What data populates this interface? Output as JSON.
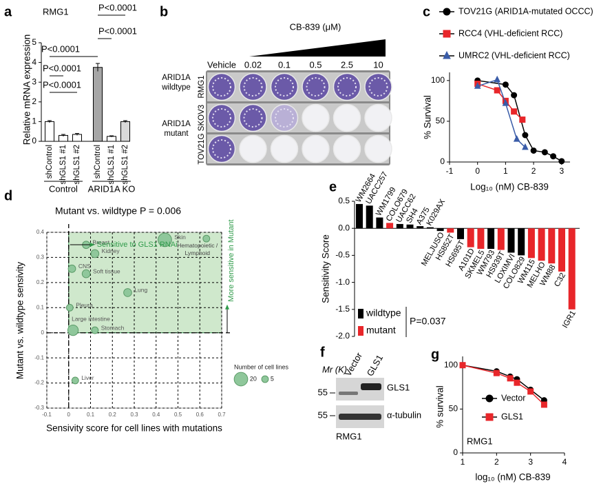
{
  "chart_data": [
    {
      "panel": "a",
      "type": "bar",
      "subtitle": "RMG1",
      "y_label": "Relative mRNA expression",
      "categories": [
        "shControl",
        "shGLS1 #1",
        "shGLS1 #2",
        "shControl",
        "shGLS1 #1",
        "shGLS1 #2"
      ],
      "values": [
        1,
        0.3,
        0.35,
        3.75,
        0.25,
        1
      ],
      "errors": [
        0.05,
        0.05,
        0.05,
        0.2,
        0.03,
        0.05
      ],
      "colors": [
        "#ffffff",
        "#ffffff",
        "#ffffff",
        "#a6a6a6",
        "#ffffff",
        "#d9d9d9"
      ],
      "groups": [
        "Control",
        "ARID1A KO"
      ],
      "annotations": [
        "P<0.0001",
        "P<0.0001",
        "P<0.0001",
        "P<0.0001",
        "P<0.0001"
      ],
      "ylim": [
        0,
        5
      ],
      "yticks": [
        0,
        1,
        2,
        3,
        4,
        5
      ]
    },
    {
      "panel": "c",
      "type": "line",
      "x_label": "Log₁₀ (nM) CB-839",
      "y_label": "% Survival",
      "xlim": [
        -1,
        3.3
      ],
      "xticks": [
        -1,
        0,
        1,
        2,
        3
      ],
      "ylim": [
        0,
        110
      ],
      "yticks": [
        0,
        50,
        100
      ],
      "series": [
        {
          "name": "TOV21G (ARID1A-mutated OCCC)",
          "color": "#000000",
          "marker": "circle",
          "x": [
            0,
            1,
            1.3,
            1.7,
            2,
            2.4,
            2.7,
            3
          ],
          "values": [
            100,
            95,
            82,
            33,
            14,
            12,
            7,
            1
          ]
        },
        {
          "name": "RCC4 (VHL-deficient RCC)",
          "color": "#e8262a",
          "marker": "square",
          "x": [
            0,
            0.7,
            1,
            1.3,
            1.6
          ],
          "values": [
            96,
            88,
            75,
            62,
            52
          ]
        },
        {
          "name": "UMRC2 (VHL-deficient RCC)",
          "color": "#3a5ca8",
          "marker": "triangle",
          "x": [
            0,
            0.7,
            1,
            1.4,
            1.7
          ],
          "values": [
            93,
            101,
            72,
            28,
            18
          ]
        }
      ]
    },
    {
      "panel": "d",
      "type": "scatter",
      "title": "Mutant vs. wildtype P = 0.006",
      "x_label": "Sensivity score for cell lines with mutations",
      "y_label": "Mutant vs. wildtype sensivity",
      "annotations": [
        "Sensitive to GLS1 RNAi",
        "More sensitive in Mutant"
      ],
      "color": "#8fc79b",
      "categories": [
        "Skin",
        "Hematopoietic / Lymphoid",
        "Breast",
        "Kidney",
        "CNS",
        "Soft tissue",
        "Lung",
        "Pleura",
        "Large intestine",
        "Stomach",
        "Liver"
      ],
      "x": [
        0.44,
        0.63,
        0.08,
        0.12,
        0.015,
        0.08,
        0.27,
        0.005,
        0.02,
        0.12,
        0.03
      ],
      "values": [
        0.37,
        0.375,
        0.35,
        0.315,
        0.255,
        0.235,
        0.16,
        0.1,
        0.01,
        0.01,
        -0.19
      ],
      "sizes": [
        20,
        5,
        6,
        7,
        6,
        7,
        7,
        5,
        12,
        5,
        5
      ],
      "size_legend": {
        "title": "Number of cell lines",
        "sizes": [
          20,
          5
        ]
      },
      "xlim": [
        -0.1,
        0.7
      ],
      "xticks": [
        -0.1,
        0,
        0.1,
        0.2,
        0.3,
        0.4,
        0.5,
        0.6,
        0.7
      ],
      "ylim": [
        -0.3,
        0.4
      ],
      "yticks": [
        -0.3,
        -0.2,
        -0.1,
        0,
        0.1,
        0.2,
        0.3,
        0.4
      ],
      "grid": true
    },
    {
      "panel": "e",
      "type": "bar",
      "y_label": "Sensitivity Score",
      "categories": [
        "WM2664",
        "UACC257",
        "WM1799",
        "COLO679",
        "UACC62",
        "SH4",
        "A375",
        "K029AX",
        "MELJUSO",
        "HS852T",
        "HS695T",
        "A101D",
        "SKMEL5",
        "WM793",
        "HS939T",
        "LOXIMVI",
        "COLO829",
        "WM115",
        "MELHO",
        "WM88",
        "C32",
        "IGR1"
      ],
      "values": [
        0.45,
        0.42,
        0.2,
        0.1,
        0.08,
        0.07,
        0.04,
        0.02,
        -0.05,
        -0.08,
        -0.2,
        -0.35,
        -0.38,
        -0.38,
        -0.4,
        -0.45,
        -0.5,
        -0.55,
        -0.6,
        -0.65,
        -0.8,
        -1.5
      ],
      "colors": [
        "#000000",
        "#000000",
        "#000000",
        "#e8262a",
        "#000000",
        "#000000",
        "#000000",
        "#000000",
        "#000000",
        "#e8262a",
        "#000000",
        "#e8262a",
        "#e8262a",
        "#000000",
        "#e8262a",
        "#000000",
        "#000000",
        "#e8262a",
        "#e8262a",
        "#e8262a",
        "#e8262a",
        "#e8262a"
      ],
      "legend": [
        {
          "name": "wildtype",
          "color": "#000000"
        },
        {
          "name": "mutant",
          "color": "#e8262a"
        }
      ],
      "annotation": "P=0.037",
      "ylim": [
        -2,
        0.5
      ],
      "yticks": [
        {
          "value": -2,
          "label": "-2.0"
        },
        -1.5,
        {
          "value": -1,
          "label": "-1.0"
        },
        -0.5,
        {
          "value": 0,
          "label": "0.0"
        },
        0.5
      ]
    },
    {
      "panel": "g",
      "type": "line",
      "annotation": "RMG1",
      "x_label": "log₁₀ (nM) CB-839",
      "y_label": "% survival",
      "xlim": [
        1,
        4
      ],
      "xticks": [
        1,
        2,
        3,
        4
      ],
      "ylim": [
        0,
        110
      ],
      "yticks": [
        0,
        50,
        100
      ],
      "series": [
        {
          "name": "Vector",
          "color": "#000000",
          "marker": "circle",
          "x": [
            1,
            2,
            2.4,
            2.6,
            3,
            3.4
          ],
          "values": [
            100,
            93,
            87,
            84,
            72,
            60
          ]
        },
        {
          "name": "GLS1",
          "color": "#e8262a",
          "marker": "square",
          "x": [
            1,
            2,
            2.4,
            2.6,
            3,
            3.4
          ],
          "values": [
            100,
            91,
            85,
            80,
            70,
            55
          ]
        }
      ]
    }
  ],
  "images": [
    {
      "panel": "b",
      "title": "CB-839 (μM)",
      "columns": [
        "Vehicle",
        0.02,
        0.1,
        0.5,
        2.5,
        10
      ],
      "groups": [
        "ARID1A wildtype",
        "ARID1A mutant"
      ],
      "rows": [
        "RMG1",
        "SKOV3",
        "TOV21G"
      ]
    },
    {
      "panel": "f",
      "mr_label": "Mr (K)",
      "lanes": [
        "Vector",
        "GLS1"
      ],
      "markers": [
        55,
        55
      ],
      "bands": [
        "GLS1",
        "α-tubulin"
      ],
      "cell_line": "RMG1"
    }
  ]
}
